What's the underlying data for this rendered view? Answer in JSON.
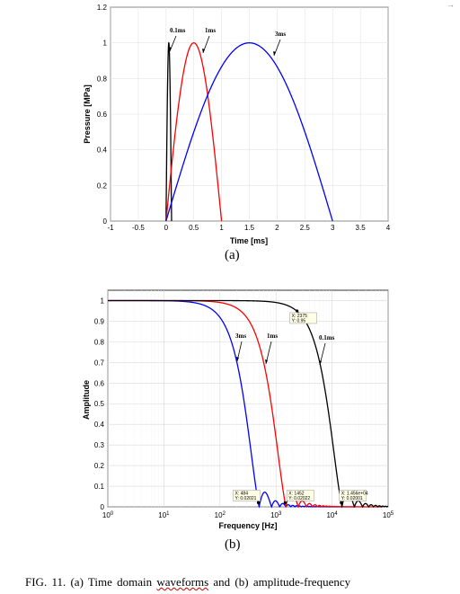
{
  "figure_a": {
    "label": "(a)",
    "chart_data": {
      "type": "line",
      "xlabel": "Time [ms]",
      "ylabel": "Pressure [MPa]",
      "xlim": [
        -1,
        4
      ],
      "ylim": [
        0,
        1.2
      ],
      "xticks": [
        "-1",
        "-0.5",
        "0",
        "0.5",
        "1",
        "1.5",
        "2",
        "2.5",
        "3",
        "3.5",
        "4"
      ],
      "yticks": [
        "0",
        "0.2",
        "0.4",
        "0.6",
        "0.8",
        "1",
        "1.2"
      ],
      "grid": true,
      "series": [
        {
          "name": "0.1ms",
          "color": "#000000",
          "duration_ms": 0.1,
          "peak_ms": 0.05,
          "peak": 1.0
        },
        {
          "name": "1ms",
          "color": "#ff0000",
          "duration_ms": 1.0,
          "peak_ms": 0.5,
          "peak": 1.0
        },
        {
          "name": "3ms",
          "color": "#0000ff",
          "duration_ms": 3.0,
          "peak_ms": 1.5,
          "peak": 1.0
        }
      ],
      "annotations": [
        "0.1ms",
        "1ms",
        "3ms"
      ]
    }
  },
  "figure_b": {
    "label": "(b)",
    "chart_data": {
      "type": "line",
      "xlabel": "Frequency [Hz]",
      "ylabel": "Amplitude",
      "xscale": "log",
      "xlim": [
        1,
        100000
      ],
      "ylim": [
        0,
        1.05
      ],
      "xticks": [
        "0",
        "1",
        "2",
        "3",
        "4",
        "5"
      ],
      "yticks": [
        "0",
        "0.1",
        "0.2",
        "0.3",
        "0.4",
        "0.5",
        "0.6",
        "0.7",
        "0.8",
        "0.9",
        "1"
      ],
      "grid": true,
      "series": [
        {
          "name": "3ms",
          "color": "#0000ff",
          "duration_ms": 3.0
        },
        {
          "name": "1ms",
          "color": "#ff0000",
          "duration_ms": 1.0
        },
        {
          "name": "0.1ms",
          "color": "#000000",
          "duration_ms": 0.1
        }
      ],
      "annotations": [
        "3ms",
        "1ms",
        "0.1ms"
      ],
      "datatips": [
        {
          "x_text": "X: 2375",
          "y_text": "Y: 0.95",
          "x": 2375,
          "y": 0.95
        },
        {
          "x_text": "X: 484",
          "y_text": "Y: 0.02021",
          "x": 484,
          "y": 0.02021
        },
        {
          "x_text": "X: 1452",
          "y_text": "Y: 0.02022",
          "x": 1452,
          "y": 0.02022
        },
        {
          "x_text": "X: 1.456e+04",
          "y_text": "Y: 0.02001",
          "x": 14560,
          "y": 0.02001
        }
      ]
    }
  },
  "caption": {
    "prefix": "FIG.  11.  (a)  Time  domain  ",
    "wavy_word": "waveforms",
    "suffix": "  and  (b)  amplitude-frequency"
  },
  "corner_mark": "→"
}
